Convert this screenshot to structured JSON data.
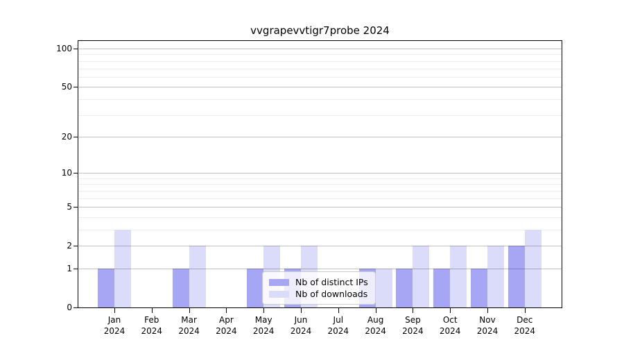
{
  "title": "vvgrapevvtigr7probe 2024",
  "chart_data": {
    "type": "bar",
    "title": "vvgrapevvtigr7probe 2024",
    "categories": [
      "Jan",
      "Feb",
      "Mar",
      "Apr",
      "May",
      "Jun",
      "Jul",
      "Aug",
      "Sep",
      "Oct",
      "Nov",
      "Dec"
    ],
    "year": "2024",
    "series": [
      {
        "name": "Nb of distinct IPs",
        "color": "#a6a6f4",
        "values": [
          1,
          0,
          1,
          0,
          1,
          1,
          0,
          1,
          1,
          1,
          1,
          2
        ]
      },
      {
        "name": "Nb of downloads",
        "color": "#dbdbfa",
        "values": [
          3,
          0,
          2,
          0,
          2,
          2,
          0,
          1,
          2,
          2,
          2,
          3
        ]
      }
    ],
    "yticks": [
      0,
      1,
      2,
      5,
      10,
      20,
      50,
      100
    ],
    "minor_yticks": [
      3,
      4,
      6,
      7,
      8,
      9,
      30,
      40,
      60,
      70,
      80,
      90
    ],
    "ylim": [
      0,
      100
    ],
    "scale": "log1p",
    "grid": true,
    "legend_position": "lower center",
    "colors": {
      "spine": "#000000",
      "major_grid": "#c3c3c3",
      "minor_grid": "#ededed",
      "background": "#ffffff"
    }
  }
}
